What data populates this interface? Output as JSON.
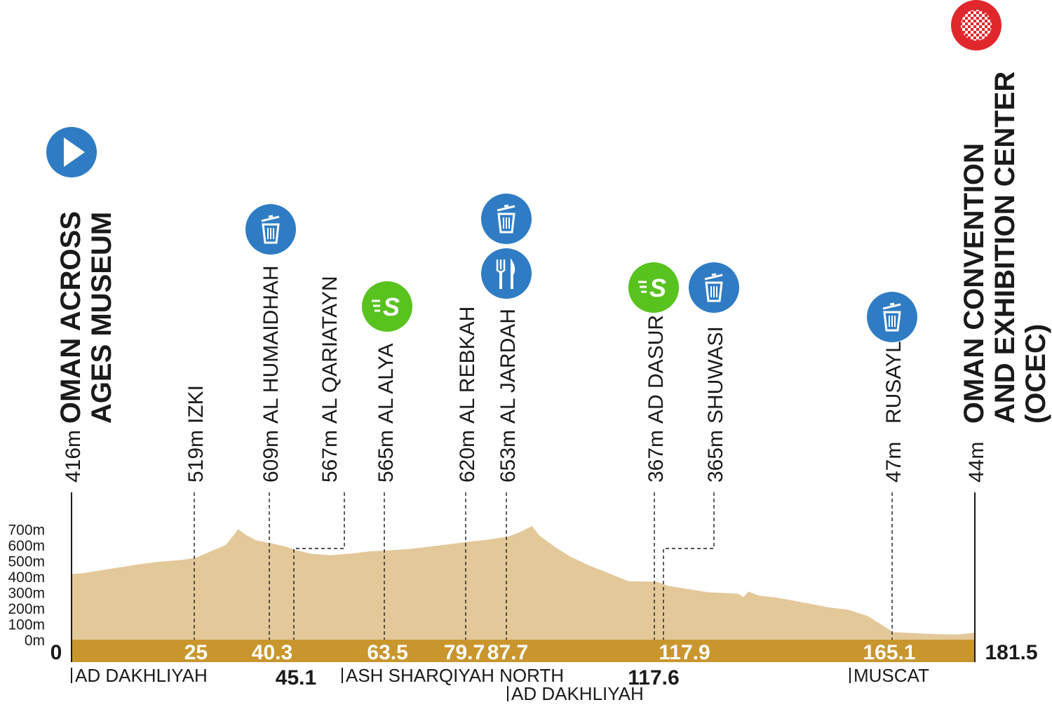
{
  "chart_data": {
    "type": "area",
    "title": "",
    "xlabel": "",
    "ylabel": "",
    "x_unit": "km",
    "y_unit": "m",
    "xlim": [
      0,
      181.5
    ],
    "ylim": [
      0,
      700
    ],
    "y_ticks": [
      "0m",
      "100m",
      "200m",
      "300m",
      "400m",
      "500m",
      "600m",
      "700m"
    ],
    "grid": false,
    "profile": {
      "x": [
        0,
        2,
        6,
        10,
        14,
        18,
        22,
        25,
        28,
        31,
        32,
        33.5,
        35,
        37,
        40.3,
        43,
        45.1,
        48,
        52,
        56,
        60,
        63.5,
        68,
        72,
        76,
        79.7,
        84,
        87.7,
        90,
        92.5,
        94,
        97,
        100,
        104,
        108,
        112,
        117.6,
        120,
        124,
        128,
        132,
        134,
        135,
        136,
        138,
        142,
        148,
        152,
        156,
        160,
        163,
        165.1,
        167,
        170,
        174,
        178,
        181.5
      ],
      "y": [
        416,
        420,
        440,
        460,
        480,
        495,
        505,
        519,
        560,
        600,
        640,
        700,
        665,
        630,
        609,
        590,
        567,
        545,
        535,
        545,
        560,
        565,
        575,
        590,
        605,
        620,
        635,
        653,
        680,
        720,
        660,
        590,
        530,
        470,
        420,
        370,
        367,
        340,
        320,
        300,
        295,
        290,
        270,
        305,
        280,
        265,
        230,
        205,
        190,
        150,
        90,
        47,
        45,
        40,
        35,
        32,
        44
      ]
    },
    "start": {
      "name": "OMAN ACROSS\nAGES MUSEUM",
      "altitude_label": "416m",
      "km_label": "0"
    },
    "finish": {
      "name": "OMAN CONVENTION\nAND EXHIBITION CENTER\n(OCEC)",
      "altitude_label": "44m",
      "km_label": "181.5"
    },
    "waypoints": [
      {
        "name": "IZKI",
        "altitude_label": "519m",
        "km": 25,
        "km_label": "25",
        "icons": []
      },
      {
        "name": "AL HUMAIDHAH",
        "altitude_label": "609m",
        "km": 40.3,
        "km_label": "40.3",
        "icons": [
          "trash-icon"
        ]
      },
      {
        "name": "AL QARIATAYN",
        "altitude_label": "567m",
        "km": 45.1,
        "km_label": "45.1",
        "icons": []
      },
      {
        "name": "AL ALYA",
        "altitude_label": "565m",
        "km": 63.5,
        "km_label": "63.5",
        "icons": [
          "sprint-icon"
        ]
      },
      {
        "name": "AL REBKAH",
        "altitude_label": "620m",
        "km": 79.7,
        "km_label": "79.7",
        "icons": []
      },
      {
        "name": "AL JARDAH",
        "altitude_label": "653m",
        "km": 87.7,
        "km_label": "87.7",
        "icons": [
          "trash-icon",
          "feed-icon"
        ]
      },
      {
        "name": "AD DASUR",
        "altitude_label": "367m",
        "km": 117.6,
        "km_label": "117.6",
        "icons": [
          "sprint-icon"
        ]
      },
      {
        "name": "SHUWASI",
        "altitude_label": "365m",
        "km": 117.9,
        "km_label": "117.9",
        "icons": [
          "trash-icon"
        ]
      },
      {
        "name": "RUSAYL",
        "altitude_label": "47m",
        "km": 165.1,
        "km_label": "165.1",
        "icons": [
          "trash-icon"
        ]
      }
    ],
    "regions": [
      {
        "name": "AD DAKHLIYAH"
      },
      {
        "name": "ASH SHARQIYAH NORTH"
      },
      {
        "name": "AD DAKHLIYAH"
      },
      {
        "name": "MUSCAT"
      }
    ],
    "colors": {
      "profile_fill": "#e3c89a",
      "km_band": "#c9962e",
      "icon_blue": "#2f7cc4",
      "icon_green": "#58c21f",
      "finish_red": "#e0282c",
      "text": "#1a1a1a"
    }
  }
}
